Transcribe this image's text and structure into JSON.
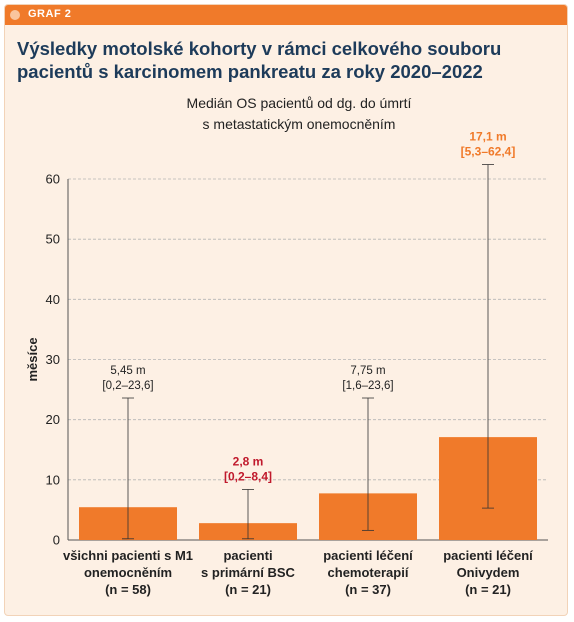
{
  "label": "GRAF 2",
  "title": "Výsledky motolské kohorty v rámci celkového souboru pacientů s karcinomem pankreatu za roky 2020–2022",
  "colors": {
    "accent": "#f07a2a",
    "title": "#1d3b5a",
    "background": "#fdf0e4",
    "highlight_red": "#c0192c"
  },
  "chart_data": {
    "type": "bar",
    "title": [
      "Medián OS pacientů od dg. do úmrtí",
      "s metastatickým onemocněním"
    ],
    "ylabel": "měsíce",
    "ylim": [
      0,
      60
    ],
    "yticks": [
      0,
      10,
      20,
      30,
      40,
      50,
      60
    ],
    "grid": true,
    "categories": [
      [
        "všichni pacienti s M1",
        "onemocněním",
        "(n = 58)"
      ],
      [
        "pacienti",
        "s primární BSC",
        "(n = 21)"
      ],
      [
        "pacienti léčení",
        "chemoterapií",
        "(n = 37)"
      ],
      [
        "pacienti léčení",
        "Onivydem",
        "(n = 21)"
      ]
    ],
    "values": [
      5.45,
      2.8,
      7.75,
      17.1
    ],
    "ci_low": [
      0.2,
      0.2,
      1.6,
      5.3
    ],
    "ci_high": [
      23.6,
      8.4,
      23.6,
      62.4
    ],
    "annotations": [
      {
        "value": "5,45 m",
        "range": "[0,2–23,6]",
        "style": "normal"
      },
      {
        "value": "2,8 m",
        "range": "[0,2–8,4]",
        "style": "red"
      },
      {
        "value": "7,75 m",
        "range": "[1,6–23,6]",
        "style": "normal"
      },
      {
        "value": "17,1 m",
        "range": "[5,3–62,4]",
        "style": "orange"
      }
    ]
  }
}
